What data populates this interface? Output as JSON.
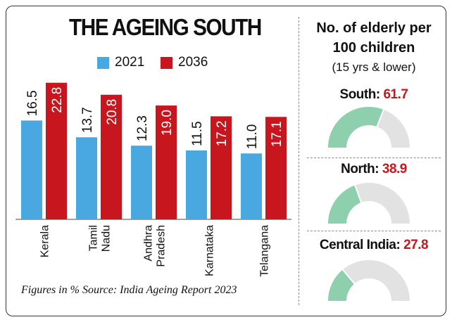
{
  "title": "THE AGEING SOUTH",
  "legend": [
    {
      "label": "2021",
      "color": "#4aa8e0"
    },
    {
      "label": "2036",
      "color": "#c8161e"
    }
  ],
  "chart_data": [
    {
      "type": "bar",
      "title": "THE AGEING SOUTH",
      "categories": [
        "Kerala",
        "Tamil Nadu",
        "Andhra Pradesh",
        "Karnataka",
        "Telangana"
      ],
      "category_lines": [
        [
          "Kerala"
        ],
        [
          "Tamil",
          "Nadu"
        ],
        [
          "Andhra",
          "Pradesh"
        ],
        [
          "Karnataka"
        ],
        [
          "Telangana"
        ]
      ],
      "series": [
        {
          "name": "2021",
          "color": "#4aa8e0",
          "values": [
            16.5,
            13.7,
            12.3,
            11.5,
            11.0
          ]
        },
        {
          "name": "2036",
          "color": "#c8161e",
          "values": [
            22.8,
            20.8,
            19.0,
            17.2,
            17.1
          ]
        }
      ],
      "value_labels": [
        [
          "16.5",
          "13.7",
          "12.3",
          "11.5",
          "11.0"
        ],
        [
          "22.8",
          "20.8",
          "19.0",
          "17.2",
          "17.1"
        ]
      ],
      "ylim": [
        0,
        23
      ],
      "grid": false
    },
    {
      "type": "gauge",
      "title": "No. of elderly per 100 children",
      "subtitle": "(15 yrs & lower)",
      "range": [
        0,
        100
      ],
      "fill_color": "#8ecfae",
      "track_color": "#e2e2e2",
      "items": [
        {
          "label": "South:",
          "value": 61.7,
          "value_text": "61.7"
        },
        {
          "label": "North:",
          "value": 38.9,
          "value_text": "38.9"
        },
        {
          "label": "Central India:",
          "value": 27.8,
          "value_text": "27.8"
        }
      ]
    }
  ],
  "footnote": "Figures in % Source: India Ageing Report 2023"
}
